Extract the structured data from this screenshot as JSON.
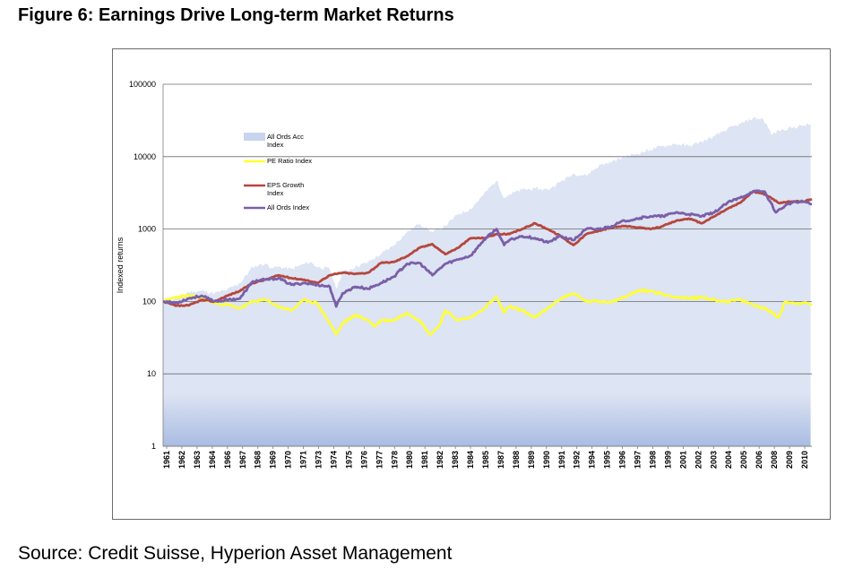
{
  "figure_title": "Figure 6: Earnings Drive Long-term Market Returns",
  "source": "Source: Credit Suisse, Hyperion Asset Management",
  "colors": {
    "acc_area": "#dde4f3",
    "acc_area_bottom": "#a9bce2",
    "pe": "#ffff33",
    "eps": "#b5473f",
    "ords": "#7a5fa8",
    "grid": "#6b6b6b",
    "axis": "#7f7f7f"
  },
  "chart_data": {
    "type": "line",
    "scale": "log",
    "ylabel": "Indexed returns",
    "xlabel": "",
    "ylim": [
      1,
      100000
    ],
    "xlim": [
      1961,
      2011.6
    ],
    "yticks": [
      1,
      10,
      100,
      1000,
      10000,
      100000
    ],
    "ytick_labels": [
      "1",
      "10",
      "100",
      "1000",
      "10000",
      "100000"
    ],
    "xtick_labels": [
      "1961",
      "1962",
      "1963",
      "1964",
      "1966",
      "1967",
      "1968",
      "1969",
      "1970",
      "1971",
      "1973",
      "1974",
      "1975",
      "1976",
      "1977",
      "1978",
      "1980",
      "1981",
      "1982",
      "1983",
      "1984",
      "1985",
      "1987",
      "1988",
      "1989",
      "1990",
      "1991",
      "1992",
      "1994",
      "1995",
      "1996",
      "1997",
      "1998",
      "1999",
      "2001",
      "2002",
      "2003",
      "2004",
      "2005",
      "2006",
      "2008",
      "2009",
      "2010"
    ],
    "legend": {
      "placement": "top-left",
      "entries": [
        "All Ords Acc Index",
        "PE Ratio Index",
        "EPS Growth Index",
        "All Ords Index"
      ]
    },
    "grid": true,
    "series": [
      {
        "name": "All Ords Acc Index",
        "kind": "area",
        "x": [
          1961,
          1962,
          1963,
          1964,
          1965,
          1966,
          1967,
          1968,
          1968.5,
          1969,
          1969.5,
          1970,
          1971,
          1972,
          1972.5,
          1973,
          1974,
          1974.5,
          1975,
          1976,
          1977,
          1978,
          1979,
          1980,
          1981,
          1982,
          1983,
          1984,
          1985,
          1986,
          1987.0,
          1987.6,
          1988,
          1989,
          1990,
          1991,
          1992,
          1993,
          1994,
          1995,
          1996,
          1997,
          1998,
          1999,
          2000,
          2001,
          2002,
          2003,
          2004,
          2005,
          2006,
          2007,
          2007.8,
          2008.5,
          2009,
          2010,
          2011,
          2011.5
        ],
        "values": [
          100,
          110,
          135,
          140,
          130,
          145,
          180,
          300,
          320,
          330,
          290,
          300,
          280,
          330,
          350,
          300,
          280,
          150,
          250,
          300,
          350,
          450,
          600,
          900,
          1200,
          900,
          1100,
          1600,
          1900,
          3000,
          4700,
          2700,
          3000,
          3500,
          3600,
          3500,
          4500,
          5800,
          5500,
          7500,
          8500,
          10000,
          11000,
          12500,
          14000,
          15000,
          14000,
          16000,
          19000,
          24000,
          28000,
          34000,
          33000,
          20000,
          23000,
          25000,
          27000,
          28000
        ]
      },
      {
        "name": "PE Ratio Index",
        "x": [
          1961,
          1962,
          1963,
          1964,
          1965,
          1966,
          1967,
          1968,
          1969,
          1970,
          1971,
          1972,
          1973,
          1974.0,
          1974.5,
          1975,
          1976,
          1977,
          1977.5,
          1978,
          1979,
          1980,
          1981,
          1981.8,
          1982.5,
          1983,
          1984,
          1985,
          1986,
          1987.0,
          1987.6,
          1988,
          1989,
          1990,
          1991,
          1992,
          1993,
          1994,
          1995,
          1996,
          1997,
          1998,
          1999,
          2000,
          2001,
          2002,
          2003,
          2004,
          2005,
          2006,
          2007,
          2008,
          2009,
          2009.5,
          2010,
          2011,
          2011.6
        ],
        "values": [
          100,
          115,
          120,
          110,
          95,
          90,
          80,
          100,
          105,
          85,
          75,
          105,
          95,
          50,
          35,
          50,
          65,
          55,
          45,
          55,
          55,
          70,
          55,
          35,
          45,
          75,
          55,
          60,
          80,
          115,
          70,
          85,
          75,
          60,
          80,
          110,
          130,
          100,
          100,
          100,
          115,
          140,
          140,
          125,
          115,
          110,
          115,
          105,
          100,
          105,
          90,
          80,
          60,
          100,
          95,
          95,
          90
        ]
      },
      {
        "name": "EPS Growth Index",
        "x": [
          1961,
          1962,
          1963,
          1964,
          1965,
          1966,
          1967,
          1968,
          1969,
          1970,
          1971,
          1972,
          1973,
          1974,
          1975,
          1976,
          1977,
          1978,
          1979,
          1980,
          1981,
          1982,
          1983,
          1984,
          1985,
          1986,
          1987,
          1988,
          1989,
          1990,
          1991,
          1992,
          1993,
          1994,
          1995,
          1996,
          1997,
          1998,
          1999,
          2000,
          2001,
          2002,
          2003,
          2004,
          2005,
          2006,
          2007,
          2008,
          2009,
          2010,
          2011,
          2011.6
        ],
        "values": [
          100,
          87,
          88,
          105,
          100,
          120,
          140,
          180,
          200,
          230,
          210,
          200,
          180,
          230,
          250,
          240,
          250,
          340,
          350,
          420,
          550,
          620,
          450,
          550,
          750,
          750,
          850,
          850,
          1000,
          1200,
          1000,
          800,
          600,
          850,
          950,
          1050,
          1100,
          1050,
          1000,
          1100,
          1300,
          1400,
          1200,
          1500,
          1900,
          2300,
          3300,
          3000,
          2300,
          2400,
          2400,
          2600
        ]
      },
      {
        "name": "All Ords Index",
        "x": [
          1961,
          1962,
          1963,
          1964,
          1965,
          1966,
          1967,
          1968,
          1969,
          1970,
          1971,
          1972,
          1973,
          1974.0,
          1974.5,
          1975,
          1976,
          1977,
          1978,
          1979,
          1980,
          1981,
          1982,
          1983,
          1984,
          1985,
          1986,
          1987.0,
          1987.6,
          1988,
          1989,
          1990,
          1991,
          1992,
          1993,
          1994,
          1995,
          1996,
          1997,
          1998,
          1999,
          2000,
          2001,
          2002,
          2003,
          2004,
          2005,
          2006,
          2007,
          2007.9,
          2008.8,
          2009.5,
          2010,
          2011,
          2011.6
        ],
        "values": [
          100,
          95,
          110,
          120,
          100,
          105,
          110,
          190,
          200,
          210,
          170,
          180,
          170,
          160,
          85,
          130,
          160,
          150,
          180,
          220,
          330,
          340,
          230,
          330,
          380,
          430,
          700,
          1000,
          600,
          700,
          800,
          750,
          650,
          800,
          700,
          1000,
          1000,
          1100,
          1300,
          1400,
          1500,
          1500,
          1700,
          1600,
          1500,
          1700,
          2300,
          2700,
          3300,
          3300,
          1700,
          2100,
          2300,
          2400,
          2200
        ]
      }
    ]
  }
}
